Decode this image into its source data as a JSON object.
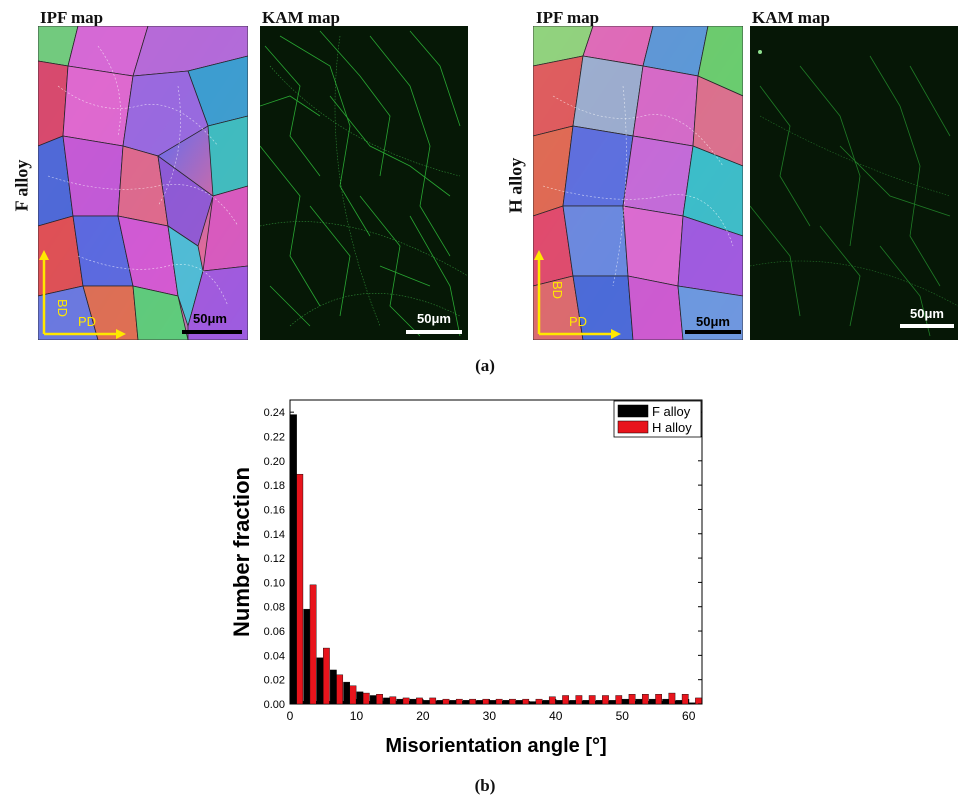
{
  "panel_a": {
    "caption": "(a)",
    "left": {
      "row_label": "F alloy",
      "ipf_title": "IPF map",
      "kam_title": "KAM map",
      "ipf_scale": "50μm",
      "kam_scale": "50μm",
      "axis_bd": "BD",
      "axis_pd": "PD"
    },
    "right": {
      "row_label": "H alloy",
      "ipf_title": "IPF map",
      "kam_title": "KAM map",
      "ipf_scale": "50μm",
      "kam_scale": "50μm",
      "axis_bd": "BD",
      "axis_pd": "PD"
    }
  },
  "panel_b": {
    "caption": "(b)"
  },
  "chart_data": {
    "type": "bar",
    "xlabel": "Misorientation angle [°]",
    "ylabel": "Number fraction",
    "xlim": [
      0,
      62
    ],
    "ylim": [
      0,
      0.25
    ],
    "xticks": [
      "0",
      "10",
      "20",
      "30",
      "40",
      "50",
      "60"
    ],
    "yticks": [
      "0.00",
      "0.02",
      "0.04",
      "0.06",
      "0.08",
      "0.10",
      "0.12",
      "0.14",
      "0.16",
      "0.18",
      "0.20",
      "0.22",
      "0.24"
    ],
    "legend_position": "top-right",
    "x": [
      1,
      3,
      5,
      7,
      9,
      11,
      13,
      15,
      17,
      19,
      21,
      23,
      25,
      27,
      29,
      31,
      33,
      35,
      37,
      39,
      41,
      43,
      45,
      47,
      49,
      51,
      53,
      55,
      57,
      59,
      61
    ],
    "series": [
      {
        "name": "F alloy",
        "color": "#000000",
        "values": [
          0.238,
          0.078,
          0.038,
          0.028,
          0.018,
          0.01,
          0.007,
          0.005,
          0.004,
          0.004,
          0.003,
          0.003,
          0.003,
          0.003,
          0.003,
          0.003,
          0.003,
          0.003,
          0.002,
          0.003,
          0.003,
          0.003,
          0.003,
          0.003,
          0.003,
          0.004,
          0.004,
          0.004,
          0.004,
          0.003,
          0.001
        ]
      },
      {
        "name": "H alloy",
        "color": "#e8141c",
        "values": [
          0.189,
          0.098,
          0.046,
          0.024,
          0.015,
          0.009,
          0.008,
          0.006,
          0.005,
          0.005,
          0.005,
          0.004,
          0.004,
          0.004,
          0.004,
          0.004,
          0.004,
          0.004,
          0.004,
          0.006,
          0.007,
          0.007,
          0.007,
          0.007,
          0.007,
          0.008,
          0.008,
          0.008,
          0.009,
          0.008,
          0.005
        ]
      }
    ]
  }
}
